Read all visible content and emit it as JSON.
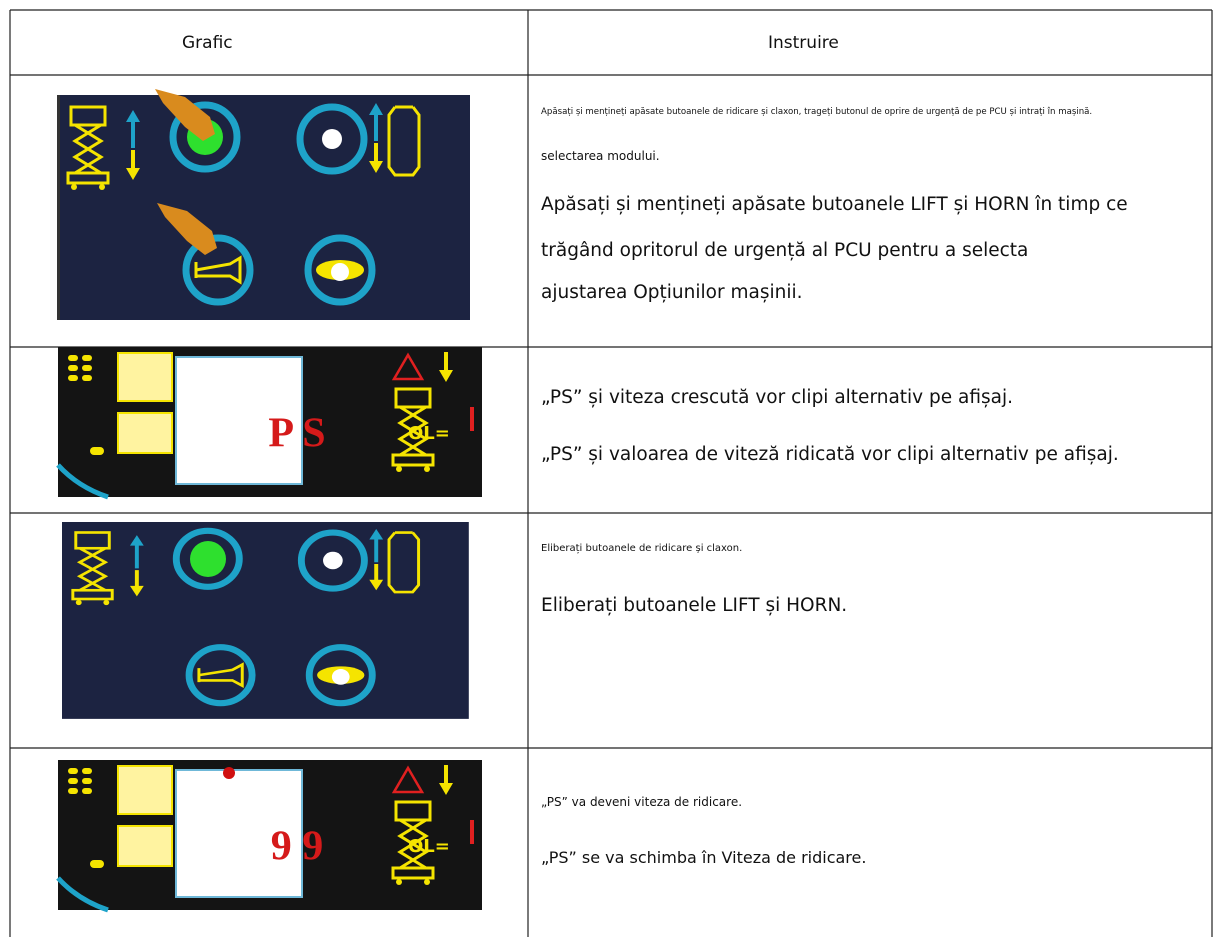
{
  "table": {
    "header": [
      "Grafic",
      "Instruire"
    ],
    "rows": [
      {
        "lines": [
          "Apăsați și mențineți apăsate butoanele de ridicare și claxon, trageți butonul de oprire de urgență de pe PCU și intrați în mașină.",
          "selectarea modului.",
          "Apăsați și mențineți apăsate butoanele LIFT și HORN în timp ce",
          "trăgând opritorul de urgență al PCU pentru a selecta",
          "ajustarea Opțiunilor mașinii."
        ]
      },
      {
        "display": "P S",
        "load_label": "OL=",
        "lines": [
          "„PS” și viteza crescută vor clipi alternativ pe afișaj.",
          "„PS” și valoarea de viteză ridicată vor clipi alternativ pe afișaj."
        ]
      },
      {
        "lines": [
          "Eliberați butoanele de ridicare și claxon.",
          "Eliberați butoanele LIFT și HORN."
        ]
      },
      {
        "display": "9 9",
        "load_label": "OL=",
        "lines": [
          "„PS” va deveni viteza de ridicare.",
          "„PS” se va schimba în Viteza de ridicare."
        ]
      }
    ]
  }
}
